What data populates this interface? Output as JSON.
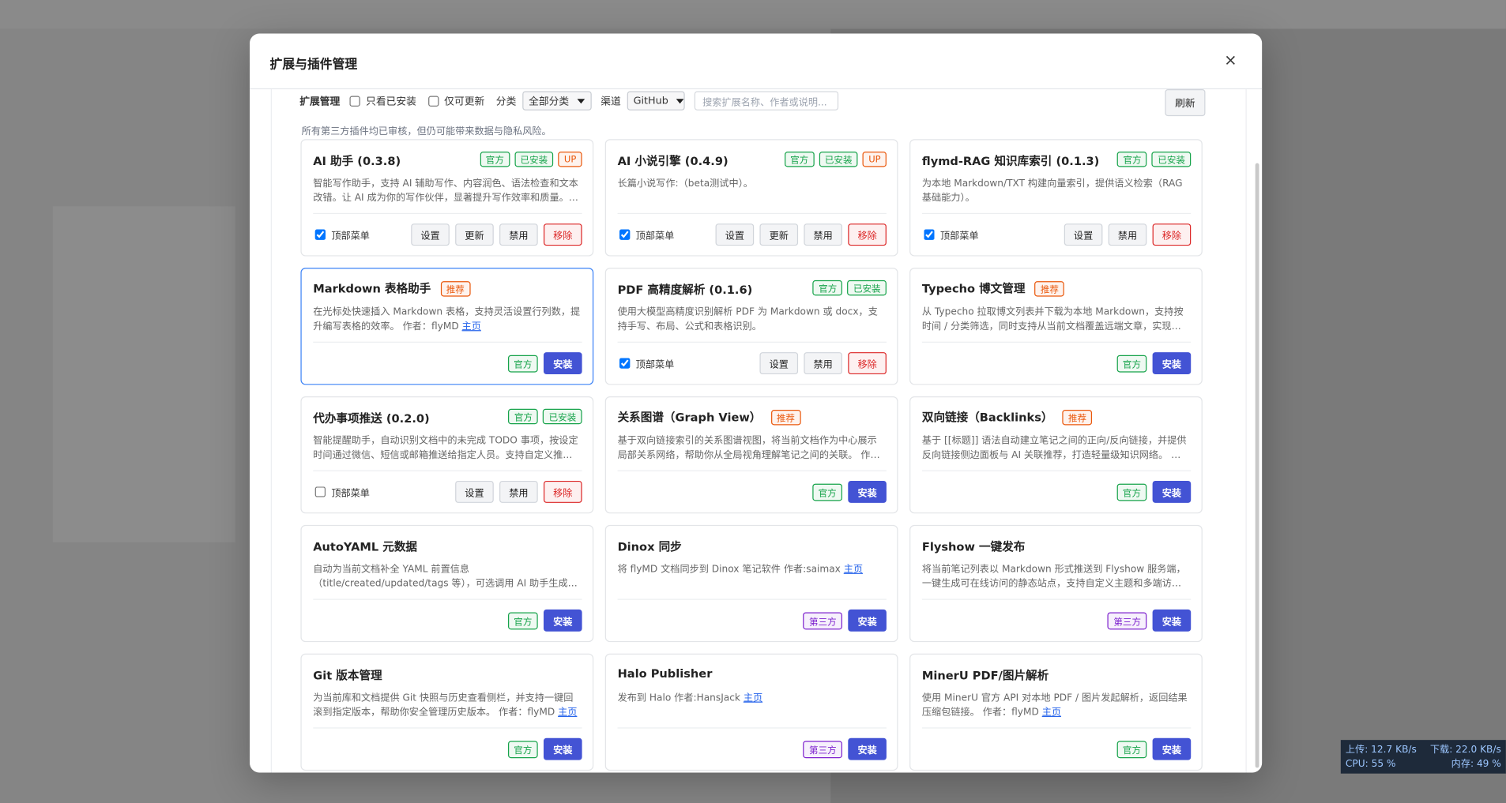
{
  "header": {
    "title": "扩展与插件管理",
    "close": "×"
  },
  "toolbar": {
    "label": "扩展管理",
    "installed_only": "只看已安装",
    "updatable_only": "仅可更新",
    "category_label": "分类",
    "category_value": "全部分类",
    "channel_label": "渠道",
    "channel_value": "GitHub",
    "search_placeholder": "搜索扩展名称、作者或说明...",
    "refresh": "刷新"
  },
  "notice": "所有第三方插件均已审核，但仍可能带来数据与隐私风险。",
  "cards": [
    {
      "title": "AI 助手 (0.3.8)",
      "badges": [
        {
          "label": "官方",
          "color": "#16a34a"
        },
        {
          "label": "已安装",
          "color": "#16a34a"
        },
        {
          "label": "UP",
          "color": "#ea580c"
        }
      ],
      "desc": "智能写作助手，支持 AI 辅助写作、内容润色、语法检查和文本改错。让 AI 成为你的写作伙伴，显著提升写作效率和质量。支持…",
      "toggle": {
        "label": "顶部菜单",
        "checked": true
      },
      "buttons": [
        {
          "label": "设置"
        },
        {
          "label": "更新"
        },
        {
          "label": "禁用"
        },
        {
          "label": "移除",
          "color": "#dc2626"
        }
      ]
    },
    {
      "title": "AI 小说引擎 (0.4.9)",
      "badges": [
        {
          "label": "官方",
          "color": "#16a34a"
        },
        {
          "label": "已安装",
          "color": "#16a34a"
        },
        {
          "label": "UP",
          "color": "#ea580c"
        }
      ],
      "desc": "长篇小说写作:（beta测试中）。",
      "toggle": {
        "label": "顶部菜单",
        "checked": true
      },
      "buttons": [
        {
          "label": "设置"
        },
        {
          "label": "更新"
        },
        {
          "label": "禁用"
        },
        {
          "label": "移除",
          "color": "#dc2626"
        }
      ]
    },
    {
      "title": "flymd-RAG 知识库索引 (0.1.3)",
      "badges": [
        {
          "label": "官方",
          "color": "#16a34a"
        },
        {
          "label": "已安装",
          "color": "#16a34a"
        }
      ],
      "desc": "为本地 Markdown/TXT 构建向量索引，提供语义检索（RAG 基础能力）。",
      "toggle": {
        "label": "顶部菜单",
        "checked": true
      },
      "buttons": [
        {
          "label": "设置"
        },
        {
          "label": "禁用"
        },
        {
          "label": "移除",
          "color": "#dc2626"
        }
      ]
    },
    {
      "title": "Markdown 表格助手",
      "selected": true,
      "inline_badges": [
        {
          "label": "推荐",
          "color": "#ea580c"
        }
      ],
      "desc": "在光标处快速插入 Markdown 表格，支持灵活设置行列数，提升编写表格的效率。 作者：flyMD ",
      "link": "主页",
      "tags": [
        {
          "label": "官方",
          "color": "#16a34a"
        }
      ],
      "buttons": [
        {
          "label": "安装",
          "fill": "#4353d4"
        }
      ]
    },
    {
      "title": "PDF 高精度解析 (0.1.6)",
      "badges": [
        {
          "label": "官方",
          "color": "#16a34a"
        },
        {
          "label": "已安装",
          "color": "#16a34a"
        }
      ],
      "desc": "使用大模型高精度识别解析 PDF 为 Markdown 或 docx，支持手写、布局、公式和表格识别。",
      "toggle": {
        "label": "顶部菜单",
        "checked": true
      },
      "buttons": [
        {
          "label": "设置"
        },
        {
          "label": "禁用"
        },
        {
          "label": "移除",
          "color": "#dc2626"
        }
      ]
    },
    {
      "title": "Typecho 博文管理",
      "inline_badges": [
        {
          "label": "推荐",
          "color": "#ea580c"
        }
      ],
      "desc": "从 Typecho 拉取博文列表并下载为本地 Markdown，支持按时间 / 分类筛选，同时支持从当前文档覆盖远端文章，实现本地…",
      "tags": [
        {
          "label": "官方",
          "color": "#16a34a"
        }
      ],
      "buttons": [
        {
          "label": "安装",
          "fill": "#4353d4"
        }
      ]
    },
    {
      "title": "代办事项推送 (0.2.0)",
      "badges": [
        {
          "label": "官方",
          "color": "#16a34a"
        },
        {
          "label": "已安装",
          "color": "#16a34a"
        }
      ],
      "desc": "智能提醒助手，自动识别文档中的未完成 TODO 事项，按设定时间通过微信、短信或邮箱推送给指定人员。支持自定义推送规…",
      "toggle": {
        "label": "顶部菜单",
        "checked": false
      },
      "buttons": [
        {
          "label": "设置"
        },
        {
          "label": "禁用"
        },
        {
          "label": "移除",
          "color": "#dc2626"
        }
      ]
    },
    {
      "title": "关系图谱（Graph View）",
      "inline_badges": [
        {
          "label": "推荐",
          "color": "#ea580c"
        }
      ],
      "desc": "基于双向链接索引的关系图谱视图，将当前文档作为中心展示局部关系网络，帮助你从全局视角理解笔记之间的关联。 作者：…",
      "tags": [
        {
          "label": "官方",
          "color": "#16a34a"
        }
      ],
      "buttons": [
        {
          "label": "安装",
          "fill": "#4353d4"
        }
      ]
    },
    {
      "title": "双向链接（Backlinks）",
      "inline_badges": [
        {
          "label": "推荐",
          "color": "#ea580c"
        }
      ],
      "desc": "基于 [[标题]] 语法自动建立笔记之间的正向/反向链接，并提供反向链接侧边面板与 AI 关联推荐，打造轻量级知识网络。 作者…",
      "tags": [
        {
          "label": "官方",
          "color": "#16a34a"
        }
      ],
      "buttons": [
        {
          "label": "安装",
          "fill": "#4353d4"
        }
      ]
    },
    {
      "title": "AutoYAML 元数据",
      "desc": "自动为当前文档补全 YAML 前置信息（title/created/updated/tags 等），可选调用 AI 助手生成标签…",
      "tags": [
        {
          "label": "官方",
          "color": "#16a34a"
        }
      ],
      "buttons": [
        {
          "label": "安装",
          "fill": "#4353d4"
        }
      ]
    },
    {
      "title": "Dinox 同步",
      "desc": "将 flyMD 文档同步到 Dinox 笔记软件 作者:saimax ",
      "link": "主页",
      "tags": [
        {
          "label": "第三方",
          "color": "#7e22ce"
        }
      ],
      "buttons": [
        {
          "label": "安装",
          "fill": "#4353d4"
        }
      ]
    },
    {
      "title": "Flyshow 一键发布",
      "desc": "将当前笔记列表以 Markdown 形式推送到 Flyshow 服务端，一键生成可在线访问的静态站点，支持自定义主题和多端访问。…",
      "tags": [
        {
          "label": "第三方",
          "color": "#7e22ce"
        }
      ],
      "buttons": [
        {
          "label": "安装",
          "fill": "#4353d4"
        }
      ]
    },
    {
      "title": "Git 版本管理",
      "desc": "为当前库和文档提供 Git 快照与历史查看侧栏，并支持一键回滚到指定版本，帮助你安全管理历史版本。 作者：flyMD ",
      "link": "主页",
      "tags": [
        {
          "label": "官方",
          "color": "#16a34a"
        }
      ],
      "buttons": [
        {
          "label": "安装",
          "fill": "#4353d4"
        }
      ]
    },
    {
      "title": "Halo Publisher",
      "desc": "发布到 Halo 作者:HansJack ",
      "link": "主页",
      "tags": [
        {
          "label": "第三方",
          "color": "#7e22ce"
        }
      ],
      "buttons": [
        {
          "label": "安装",
          "fill": "#4353d4"
        }
      ]
    },
    {
      "title": "MinerU PDF/图片解析",
      "desc": "使用 MinerU 官方 API 对本地 PDF / 图片发起解析，返回结果压缩包链接。 作者：flyMD ",
      "link": "主页",
      "tags": [
        {
          "label": "官方",
          "color": "#16a34a"
        }
      ],
      "buttons": [
        {
          "label": "安装",
          "fill": "#4353d4"
        }
      ]
    }
  ],
  "monitor": {
    "upload": "上传: 12.7 KB/s",
    "download": "下载: 22.0 KB/s",
    "cpu": "CPU: 55 %",
    "memory": "内存: 49 %"
  }
}
